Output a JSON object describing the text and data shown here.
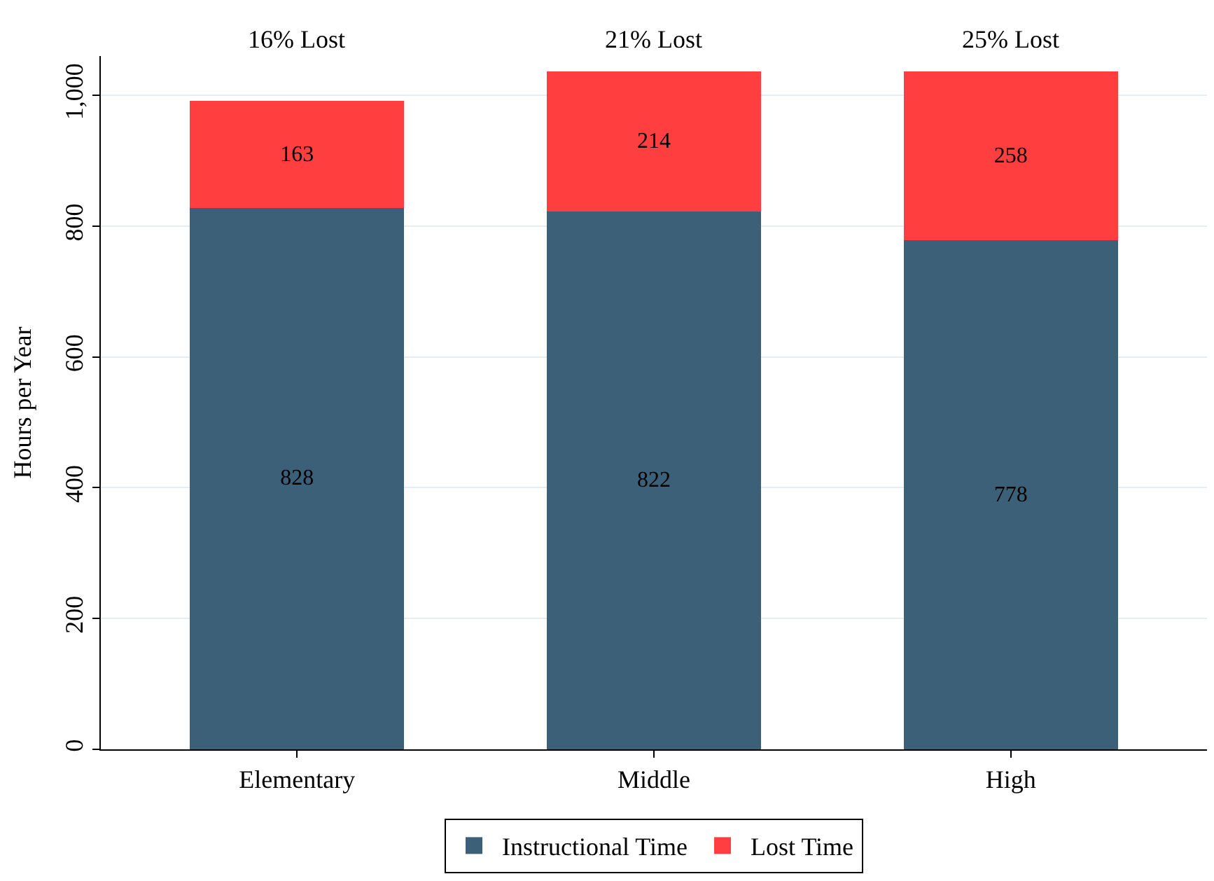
{
  "chart_data": {
    "type": "bar",
    "stacked": true,
    "ylabel": "Hours per Year",
    "categories": [
      "Elementary",
      "Middle",
      "High"
    ],
    "series": [
      {
        "name": "Instructional Time",
        "color": "#3d6079",
        "values": [
          828,
          822,
          778
        ]
      },
      {
        "name": "Lost Time",
        "color": "#ff3f3f",
        "values": [
          163,
          214,
          258
        ]
      }
    ],
    "annotations": [
      "16% Lost",
      "21% Lost",
      "25% Lost"
    ],
    "ylim": [
      0,
      1060
    ],
    "yticks": [
      0,
      200,
      400,
      600,
      800,
      {
        "value": 1000,
        "label": "1,000"
      }
    ],
    "grid": "y",
    "legend": "bottom",
    "data_labels": true
  }
}
